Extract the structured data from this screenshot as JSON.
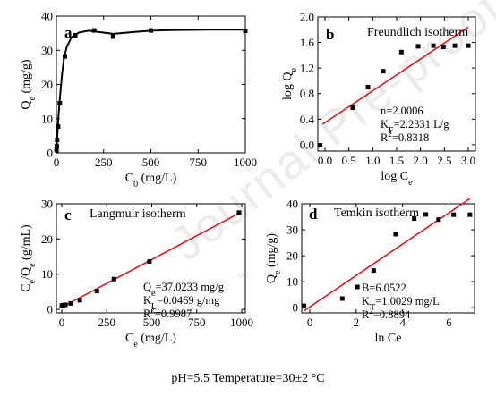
{
  "caption": "pH=5.5    Temperature=30±2 °C",
  "watermark": "Journal Pre-proof",
  "chart_data": [
    {
      "panel": "a",
      "type": "scatter",
      "xlim": [
        0,
        1000
      ],
      "ylim": [
        0,
        40
      ],
      "xticks": [
        0,
        250,
        500,
        750,
        1000
      ],
      "yticks": [
        0,
        10,
        20,
        30,
        40
      ],
      "xlabel_main": "C",
      "xlabel_sub": "0",
      "xlabel_rest": " (mg/L)",
      "ylabel_main": "Q",
      "ylabel_sub": "e",
      "ylabel_rest": " (mg/g)",
      "points": [
        [
          0.7,
          0.8
        ],
        [
          2,
          2
        ],
        [
          4,
          3.8
        ],
        [
          9,
          7.7
        ],
        [
          18,
          14.5
        ],
        [
          45,
          28.2
        ],
        [
          100,
          34.4
        ],
        [
          200,
          35.8
        ],
        [
          300,
          34.0
        ],
        [
          500,
          35.8
        ],
        [
          1000,
          35.7
        ]
      ],
      "fit": [
        [
          0,
          0
        ],
        [
          10,
          10
        ],
        [
          20,
          17
        ],
        [
          30,
          23
        ],
        [
          40,
          27.5
        ],
        [
          55,
          31
        ],
        [
          80,
          33.8
        ],
        [
          120,
          35.2
        ],
        [
          170,
          35.7
        ],
        [
          230,
          35.3
        ],
        [
          300,
          34.8
        ],
        [
          400,
          35.3
        ],
        [
          500,
          35.7
        ],
        [
          600,
          35.9
        ],
        [
          800,
          36.0
        ],
        [
          1000,
          36.0
        ]
      ]
    },
    {
      "panel": "b",
      "type": "scatter",
      "title": "Freundlich isotherm",
      "xlim": [
        -0.15,
        3.15
      ],
      "ylim": [
        -0.1,
        2.0
      ],
      "xticks": [
        0.0,
        0.5,
        1.0,
        1.5,
        2.0,
        2.5,
        3.0
      ],
      "yticks": [
        0.0,
        0.4,
        0.8,
        1.2,
        1.6,
        2.0
      ],
      "xlabel_main": "log C",
      "xlabel_sub": "e",
      "ylabel_main": "log Q",
      "ylabel_sub": "e",
      "points": [
        [
          -0.1,
          -0.01
        ],
        [
          0.58,
          0.58
        ],
        [
          0.9,
          0.9
        ],
        [
          1.22,
          1.15
        ],
        [
          1.6,
          1.45
        ],
        [
          1.95,
          1.54
        ],
        [
          2.27,
          1.55
        ],
        [
          2.48,
          1.53
        ],
        [
          2.72,
          1.55
        ],
        [
          3.0,
          1.55
        ]
      ],
      "fit": [
        [
          -0.05,
          0.32
        ],
        [
          3.0,
          1.84
        ]
      ],
      "annotations": [
        {
          "main": "n=2.0006"
        },
        {
          "main": "K",
          "sub": "F",
          "rest": "=2.2331 L/g"
        },
        {
          "main": "R",
          "sup": "2",
          "rest": "=0.8318"
        }
      ]
    },
    {
      "panel": "c",
      "type": "scatter",
      "title": "Langmuir isotherm",
      "xlim": [
        -30,
        1020
      ],
      "ylim": [
        -1.0,
        30
      ],
      "xticks": [
        0,
        250,
        500,
        750,
        1000
      ],
      "yticks": [
        0,
        10,
        20,
        30
      ],
      "xlabel_main": "C",
      "xlabel_sub": "e",
      "xlabel_rest": " (mg/L)",
      "ylabel_main": "C",
      "ylabel_sub": "e",
      "ylabel_rest": "/Q",
      "ylabel_sub2": "e",
      "ylabel_rest2": " (g/mL)",
      "points": [
        [
          0.5,
          1.0
        ],
        [
          3,
          1.1
        ],
        [
          8,
          1.2
        ],
        [
          20,
          1.3
        ],
        [
          50,
          1.7
        ],
        [
          100,
          2.6
        ],
        [
          195,
          5.2
        ],
        [
          290,
          8.6
        ],
        [
          487,
          13.6
        ],
        [
          985,
          27.5
        ]
      ],
      "fit": [
        [
          0,
          0.6
        ],
        [
          985,
          27.3
        ]
      ],
      "annotations": [
        {
          "main": "Q",
          "sub": "e",
          "rest": "=37.0233 mg/g"
        },
        {
          "main": "K",
          "sub": "L",
          "rest": "=0.0469 g/mg"
        },
        {
          "main": "R",
          "sup": "2",
          "rest": "=0.9987"
        }
      ]
    },
    {
      "panel": "d",
      "type": "scatter",
      "title": "Temkin isotherm",
      "xlim": [
        -0.35,
        7.1
      ],
      "ylim": [
        -2,
        40
      ],
      "xticks": [
        0,
        2,
        4,
        6
      ],
      "yticks": [
        0,
        10,
        20,
        30,
        40
      ],
      "xlabel_main": "ln Ce",
      "ylabel_main": "Q",
      "ylabel_sub": "e",
      "ylabel_rest": " (mg/g)",
      "points": [
        [
          -0.25,
          0.7
        ],
        [
          1.4,
          3.5
        ],
        [
          2.05,
          8.0
        ],
        [
          2.75,
          14.3
        ],
        [
          3.7,
          28.3
        ],
        [
          4.5,
          34.3
        ],
        [
          5.0,
          35.9
        ],
        [
          5.55,
          33.9
        ],
        [
          6.2,
          35.8
        ],
        [
          6.9,
          35.8
        ]
      ],
      "fit": [
        [
          -0.25,
          -1.2
        ],
        [
          6.9,
          42.0
        ]
      ],
      "annotations": [
        {
          "main": "B=6.0522"
        },
        {
          "main": "K",
          "sub": "T",
          "rest": "=1.0029 mg/L"
        },
        {
          "main": "R",
          "sup": "2",
          "rest": "=0.8894"
        }
      ]
    }
  ]
}
